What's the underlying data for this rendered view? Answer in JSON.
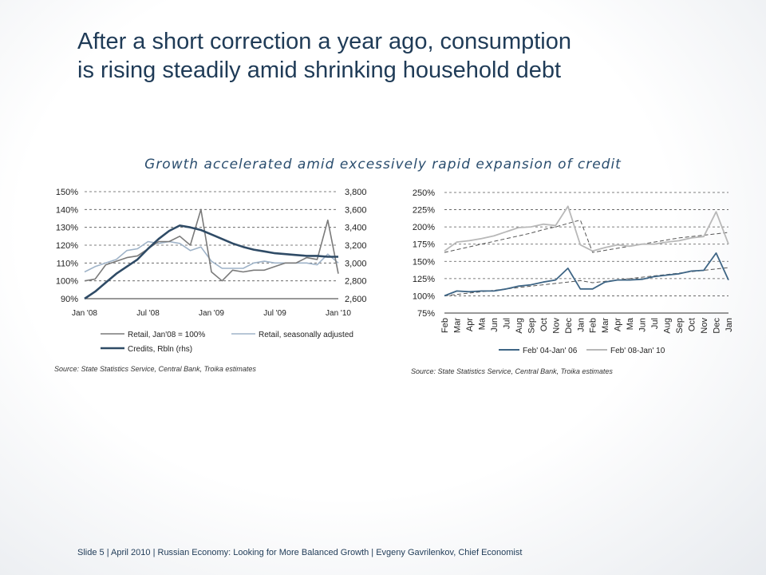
{
  "title": {
    "line1": "After a short correction a year ago, consumption",
    "line2": "is rising steadily amid shrinking household debt"
  },
  "subtitle": "Growth accelerated amid excessively rapid expansion of credit",
  "footer": "Slide 5  | April 2010 | Russian Economy: Looking for More Balanced Growth | Evgeny Gavrilenkov, Chief Economist",
  "colors": {
    "title": "#1f3b57",
    "retail": "#7a7a7a",
    "retail_sa": "#9fb3c8",
    "credits": "#2f4b66",
    "series_0406": "#3e6585",
    "series_0810": "#b8b8b8"
  },
  "chart_data": [
    {
      "type": "line",
      "x": [
        "Jan '08",
        "Feb '08",
        "Mar '08",
        "Apr '08",
        "May '08",
        "Jun '08",
        "Jul '08",
        "Aug '08",
        "Sep '08",
        "Oct '08",
        "Nov '08",
        "Dec '08",
        "Jan '09",
        "Feb '09",
        "Mar '09",
        "Apr '09",
        "May '09",
        "Jun '09",
        "Jul '09",
        "Aug '09",
        "Sep '09",
        "Oct '09",
        "Nov '09",
        "Dec '09",
        "Jan '10"
      ],
      "x_tick_labels": [
        "Jan '08",
        "Jul '08",
        "Jan '09",
        "Jul '09",
        "Jan '10"
      ],
      "x_tick_index": [
        0,
        6,
        12,
        18,
        24
      ],
      "y_left_ticks": [
        "90%",
        "100%",
        "110%",
        "120%",
        "130%",
        "140%",
        "150%"
      ],
      "y_left_range": [
        90,
        150
      ],
      "y_right_ticks": [
        "2,600",
        "2,800",
        "3,000",
        "3,200",
        "3,400",
        "3,600",
        "3,800"
      ],
      "y_right_range": [
        2600,
        3800
      ],
      "series": [
        {
          "name": "Retail, Jan'08 = 100%",
          "axis": "left",
          "values": [
            100,
            101,
            109,
            111,
            113,
            114,
            118,
            122,
            122,
            125,
            120,
            140,
            105,
            100,
            106,
            105,
            106,
            106,
            108,
            110,
            110,
            113,
            112,
            134,
            104
          ]
        },
        {
          "name": "Retail, seasonally adjusted",
          "axis": "left",
          "values": [
            105,
            108,
            110,
            112,
            117,
            118,
            122,
            121,
            122,
            121,
            117,
            119,
            111,
            107,
            107,
            107,
            110,
            111,
            110,
            110,
            110,
            110,
            109,
            115,
            110
          ]
        },
        {
          "name": "Credits, Rbln (rhs)",
          "axis": "right",
          "values": [
            2600,
            2680,
            2780,
            2880,
            2960,
            3040,
            3160,
            3270,
            3360,
            3420,
            3400,
            3370,
            3320,
            3270,
            3220,
            3180,
            3150,
            3130,
            3110,
            3100,
            3090,
            3080,
            3080,
            3070,
            3070
          ]
        }
      ],
      "source": "Source: State Statistics Service, Central Bank, Troika estimates",
      "legend": "bottom"
    },
    {
      "type": "line",
      "x": [
        "Feb",
        "Mar",
        "Apr",
        "Ma",
        "Jun",
        "Jul",
        "Aug",
        "Sep",
        "Oct",
        "Nov",
        "Dec",
        "Jan",
        "Feb",
        "Mar",
        "Apr",
        "Ma",
        "Jun",
        "Jul",
        "Aug",
        "Sep",
        "Oct",
        "Nov",
        "Dec",
        "Jan"
      ],
      "y_ticks": [
        "75%",
        "100%",
        "125%",
        "150%",
        "175%",
        "200%",
        "225%",
        "250%"
      ],
      "y_range": [
        75,
        250
      ],
      "series": [
        {
          "name": "Feb' 04-Jan' 06",
          "values": [
            100,
            107,
            106,
            107,
            107,
            110,
            114,
            116,
            120,
            123,
            140,
            110,
            110,
            120,
            123,
            123,
            124,
            128,
            130,
            132,
            136,
            137,
            162,
            123
          ],
          "trend": [
            100,
            102,
            104,
            106,
            108,
            110,
            112,
            114,
            116,
            118,
            120,
            122,
            119,
            121,
            123,
            125,
            127,
            129,
            131,
            133,
            135,
            137,
            139,
            141
          ]
        },
        {
          "name": "Feb' 08-Jan' 10",
          "values": [
            165,
            178,
            180,
            183,
            187,
            193,
            199,
            200,
            204,
            202,
            230,
            174,
            165,
            170,
            174,
            172,
            175,
            175,
            178,
            180,
            184,
            186,
            222,
            175
          ],
          "trend": [
            163,
            167,
            171,
            175,
            179,
            183,
            187,
            191,
            196,
            200,
            205,
            210,
            163,
            166,
            169,
            172,
            175,
            178,
            181,
            184,
            186,
            188,
            190,
            192
          ]
        }
      ],
      "source": "Source: State Statistics Service, Central Bank, Troika estimates",
      "legend": "bottom"
    }
  ]
}
